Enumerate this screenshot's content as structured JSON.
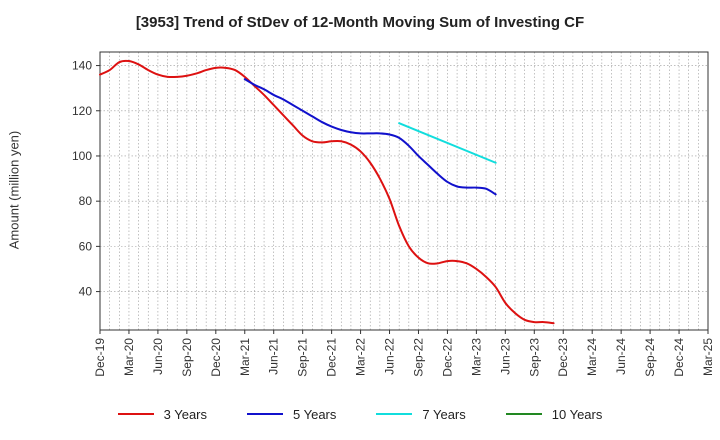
{
  "chart_data": {
    "type": "line",
    "title": "[3953]  Trend of StDev of 12-Month Moving Sum of Investing CF",
    "xlabel": "",
    "ylabel": "Amount (million yen)",
    "x_ticks": [
      "Dec-19",
      "Mar-20",
      "Jun-20",
      "Sep-20",
      "Dec-20",
      "Mar-21",
      "Jun-21",
      "Sep-21",
      "Dec-21",
      "Mar-22",
      "Jun-22",
      "Sep-22",
      "Dec-22",
      "Mar-23",
      "Jun-23",
      "Sep-23",
      "Dec-23",
      "Mar-24",
      "Jun-24",
      "Sep-24",
      "Dec-24",
      "Mar-25"
    ],
    "y_ticks": [
      40,
      60,
      80,
      100,
      120,
      140
    ],
    "ylim": [
      23,
      146
    ],
    "grid": true,
    "legend_position": "bottom",
    "series": [
      {
        "name": "3 Years",
        "color": "#dd1111",
        "values": [
          [
            0,
            136
          ],
          [
            1,
            138
          ],
          [
            2,
            141.5
          ],
          [
            3,
            142
          ],
          [
            4,
            140.5
          ],
          [
            5,
            138
          ],
          [
            6,
            136
          ],
          [
            7,
            135
          ],
          [
            8,
            135
          ],
          [
            9,
            135.5
          ],
          [
            10,
            136.5
          ],
          [
            11,
            138
          ],
          [
            12,
            139
          ],
          [
            13,
            139
          ],
          [
            14,
            138
          ],
          [
            15,
            135
          ],
          [
            16,
            131
          ],
          [
            17,
            127
          ],
          [
            18,
            122.5
          ],
          [
            19,
            118
          ],
          [
            20,
            113.5
          ],
          [
            21,
            109
          ],
          [
            22,
            106.5
          ],
          [
            23,
            106
          ],
          [
            24,
            106.5
          ],
          [
            25,
            106.5
          ],
          [
            26,
            105
          ],
          [
            27,
            102
          ],
          [
            28,
            97
          ],
          [
            29,
            90
          ],
          [
            30,
            81
          ],
          [
            31,
            69
          ],
          [
            32,
            60
          ],
          [
            33,
            55
          ],
          [
            34,
            52.5
          ],
          [
            35,
            52.5
          ],
          [
            36,
            53.5
          ],
          [
            37,
            53.5
          ],
          [
            38,
            52.5
          ],
          [
            39,
            50
          ],
          [
            40,
            46.5
          ],
          [
            41,
            42
          ],
          [
            42,
            35
          ],
          [
            43,
            30.5
          ],
          [
            44,
            27.5
          ],
          [
            45,
            26.5
          ],
          [
            46,
            26.5
          ],
          [
            47,
            26
          ]
        ]
      },
      {
        "name": "5 Years",
        "color": "#1111cc",
        "values": [
          [
            15,
            134
          ],
          [
            16,
            131.5
          ],
          [
            17,
            129.5
          ],
          [
            18,
            127
          ],
          [
            19,
            125
          ],
          [
            20,
            122.5
          ],
          [
            21,
            120
          ],
          [
            22,
            117.5
          ],
          [
            23,
            115
          ],
          [
            24,
            113
          ],
          [
            25,
            111.5
          ],
          [
            26,
            110.5
          ],
          [
            27,
            110
          ],
          [
            28,
            110
          ],
          [
            29,
            110
          ],
          [
            30,
            109.5
          ],
          [
            31,
            108
          ],
          [
            32,
            104.5
          ],
          [
            33,
            100
          ],
          [
            34,
            96
          ],
          [
            35,
            92
          ],
          [
            36,
            88.5
          ],
          [
            37,
            86.5
          ],
          [
            38,
            86
          ],
          [
            39,
            86
          ],
          [
            40,
            85.5
          ],
          [
            41,
            83
          ]
        ]
      },
      {
        "name": "7 Years",
        "color": "#11dddd",
        "values": [
          [
            31,
            114.5
          ],
          [
            41,
            97
          ]
        ]
      },
      {
        "name": "10 Years",
        "color": "#228822",
        "values": []
      }
    ]
  }
}
